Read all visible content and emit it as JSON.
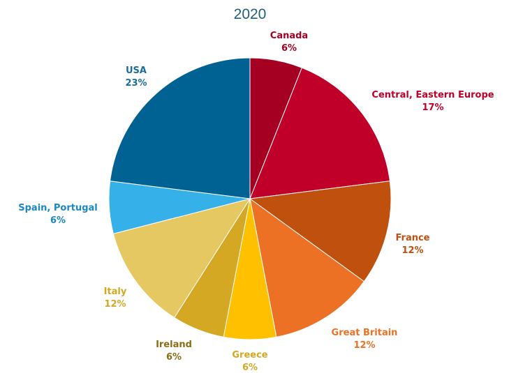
{
  "chart_data": {
    "type": "pie",
    "title": "2020",
    "slices": [
      {
        "name": "Canada",
        "value": 6,
        "label": "6%",
        "color": "#a50021"
      },
      {
        "name": "Central, Eastern Europe",
        "value": 17,
        "label": "17%",
        "color": "#c00028"
      },
      {
        "name": "France",
        "value": 12,
        "label": "12%",
        "color": "#c0500e"
      },
      {
        "name": "Great Britain",
        "value": 12,
        "label": "12%",
        "color": "#ed7125"
      },
      {
        "name": "Greece",
        "value": 6,
        "label": "6%",
        "color": "#ffc000"
      },
      {
        "name": "Ireland",
        "value": 6,
        "label": "6%",
        "color": "#d4a822"
      },
      {
        "name": "Italy",
        "value": 12,
        "label": "12%",
        "color": "#e6c862"
      },
      {
        "name": "Spain, Portugal",
        "value": 6,
        "label": "6%",
        "color": "#35b0e8"
      },
      {
        "name": "USA",
        "value": 23,
        "label": "23%",
        "color": "#006293"
      }
    ],
    "label_colors": [
      "#a50021",
      "#c00028",
      "#c0500e",
      "#ed7125",
      "#d4a822",
      "#8a6d14",
      "#d4a822",
      "#1a88c2",
      "#1a6d9e"
    ]
  }
}
